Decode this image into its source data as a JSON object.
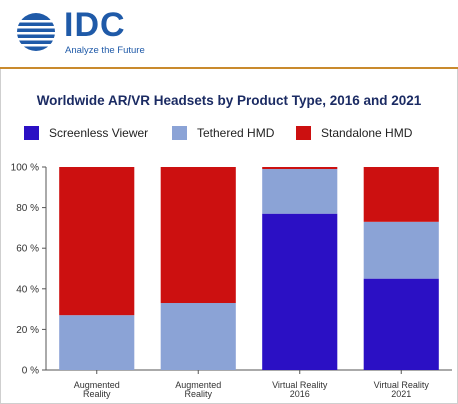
{
  "header": {
    "logo_text": "IDC",
    "tagline": "Analyze the Future"
  },
  "colors": {
    "brand": "#1f5aa8",
    "rule": "#c98a2d"
  },
  "chart_data": {
    "type": "bar",
    "stacked": true,
    "title": "Worldwide AR/VR Headsets by Product Type, 2016 and 2021",
    "legend_position": "top",
    "categories": [
      [
        "Augmented",
        "Reality"
      ],
      [
        "Augmented",
        "Reality"
      ],
      [
        "Virtual Reality",
        "2016"
      ],
      [
        "Virtual Reality",
        "2021"
      ]
    ],
    "series": [
      {
        "name": "Screenless Viewer",
        "color": "#2b10c4",
        "values": [
          0,
          0,
          77,
          45
        ]
      },
      {
        "name": "Tethered HMD",
        "color": "#8ba3d6",
        "values": [
          27,
          33,
          22,
          28
        ]
      },
      {
        "name": "Standalone HMD",
        "color": "#cc1010",
        "values": [
          73,
          67,
          1,
          27
        ]
      }
    ],
    "ylim": [
      0,
      100
    ],
    "yticks": [
      0,
      20,
      40,
      60,
      80,
      100
    ],
    "ytick_labels": [
      "0 %",
      "20 %",
      "40 %",
      "60 %",
      "80 %",
      "100 %"
    ],
    "xlabel": "",
    "ylabel": "",
    "grid": false
  }
}
